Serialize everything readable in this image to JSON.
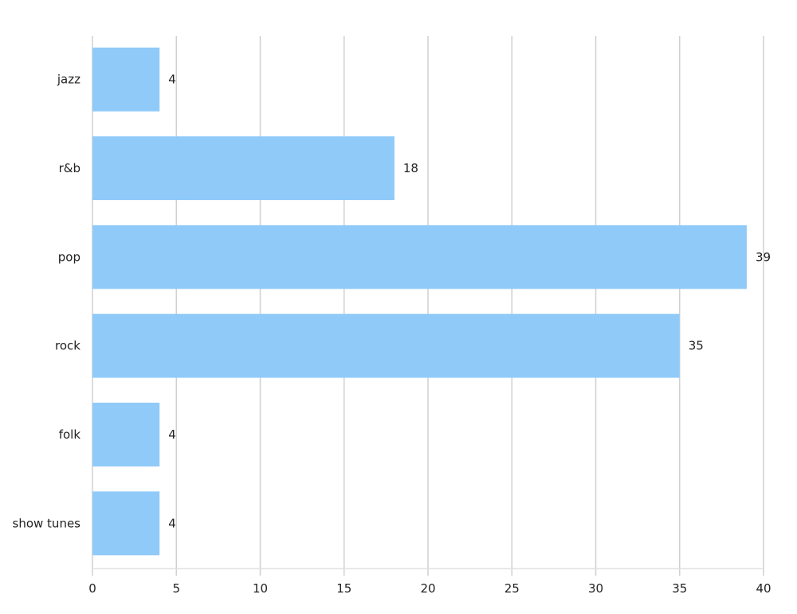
{
  "chart_data": {
    "type": "bar",
    "orientation": "horizontal",
    "categories": [
      "jazz",
      "r&b",
      "pop",
      "rock",
      "folk",
      "show tunes"
    ],
    "values": [
      4,
      18,
      39,
      35,
      4,
      4
    ],
    "data_labels": [
      "4",
      "18",
      "39",
      "35",
      "4",
      "4"
    ],
    "xlim": [
      0,
      40
    ],
    "xticks": [
      0,
      5,
      10,
      15,
      20,
      25,
      30,
      35,
      40
    ],
    "tick_labels": [
      "0",
      "5",
      "10",
      "15",
      "20",
      "25",
      "30",
      "35",
      "40"
    ],
    "grid": "vertical",
    "bar_color": "#90CAF9",
    "title": "",
    "xlabel": "",
    "ylabel": ""
  }
}
